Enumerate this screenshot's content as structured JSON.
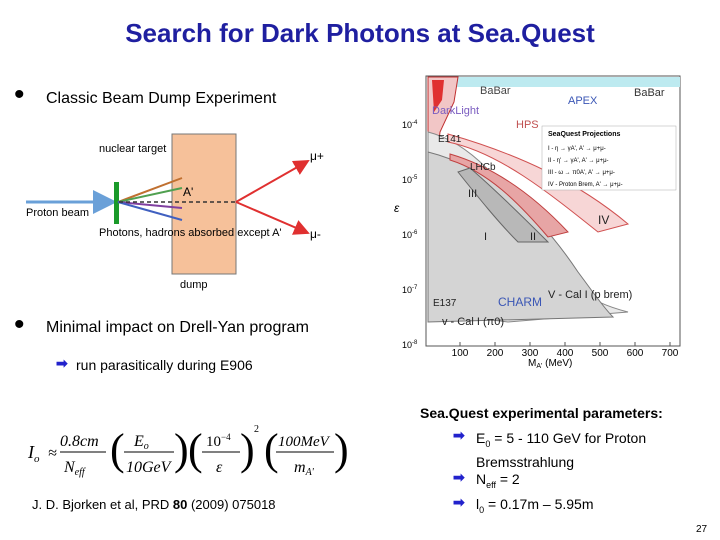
{
  "slide": {
    "title": "Search for Dark Photons at Sea.Quest",
    "bullets": [
      {
        "text": "Classic Beam Dump Experiment"
      },
      {
        "text": "Minimal impact on Drell-Yan program"
      }
    ],
    "sub_bullet": "run parasitically  during E906",
    "page_number": "27",
    "reference": {
      "prefix": "J. D. Bjorken et al, PRD ",
      "volume": "80",
      "suffix": " (2009) 075018"
    }
  },
  "diagram": {
    "labels": {
      "nuclear_target": "nuclear target",
      "proton_beam": "Proton beam",
      "photons": "Photons, hadrons absorbed except A'",
      "a_prime": "A'",
      "mu_plus": "μ+",
      "mu_minus": "μ-",
      "dump": "dump"
    }
  },
  "formula": {
    "lhs": "I",
    "lhs_sub": "o",
    "t1_num": "0.8cm",
    "t1_den": "N",
    "t1_den_sub": "eff",
    "t2_num": "E",
    "t2_num_sub": "o",
    "t2_den": "10GeV",
    "t3_num": "10",
    "t3_num_exp": "−4",
    "t3_den": "ε",
    "t3_exp": "2",
    "t4_num": "100MeV",
    "t4_den": "m",
    "t4_den_sub": "A'"
  },
  "params": {
    "title": "Sea.Quest experimental parameters:",
    "items": [
      {
        "main": "E",
        "sub": "0",
        "rest": " = 5 - 110 GeV for Proton",
        "line2": "Bremsstrahlung"
      },
      {
        "main": "N",
        "sub": "eff",
        "rest": " = 2",
        "line2": ""
      },
      {
        "main": "l",
        "sub": "0",
        "rest": " = 0.17m – 5.95m",
        "line2": ""
      }
    ]
  },
  "chart_data": {
    "type": "area",
    "xlabel": "M",
    "xlabel_sub": "A'",
    "xlabel_unit": " (MeV)",
    "ylabel": "ε",
    "x_ticks": [
      "100",
      "200",
      "300",
      "400",
      "500",
      "600",
      "700"
    ],
    "y_ticks": [
      {
        "base": "10",
        "exp": "-4"
      },
      {
        "base": "10",
        "exp": "-5"
      },
      {
        "base": "10",
        "exp": "-6"
      },
      {
        "base": "10",
        "exp": "-7"
      },
      {
        "base": "10",
        "exp": "-8"
      }
    ],
    "region_labels": {
      "babar": "BaBar",
      "apex": "APEX",
      "darklight": "DarkLight",
      "hps": "HPS",
      "e141": "E141",
      "lhcb": "LHCb",
      "e137": "E137",
      "charm": "CHARM",
      "region_i": "I",
      "region_ii": "II",
      "region_iii": "III",
      "region_iv": "IV",
      "v_cal_pbrem": "V - Cal I (p brem)",
      "v_cal_pi0": "v - Cal I (π0)"
    },
    "legend": {
      "title": "SeaQuest Projections",
      "entries": [
        "I - η → γA', A' → μ+μ-",
        "II - η' → γA', A' → μ+μ-",
        "III - ω → π0A', A' → μ+μ-",
        "IV - Proton Brem, A' → μ+μ-"
      ]
    }
  }
}
